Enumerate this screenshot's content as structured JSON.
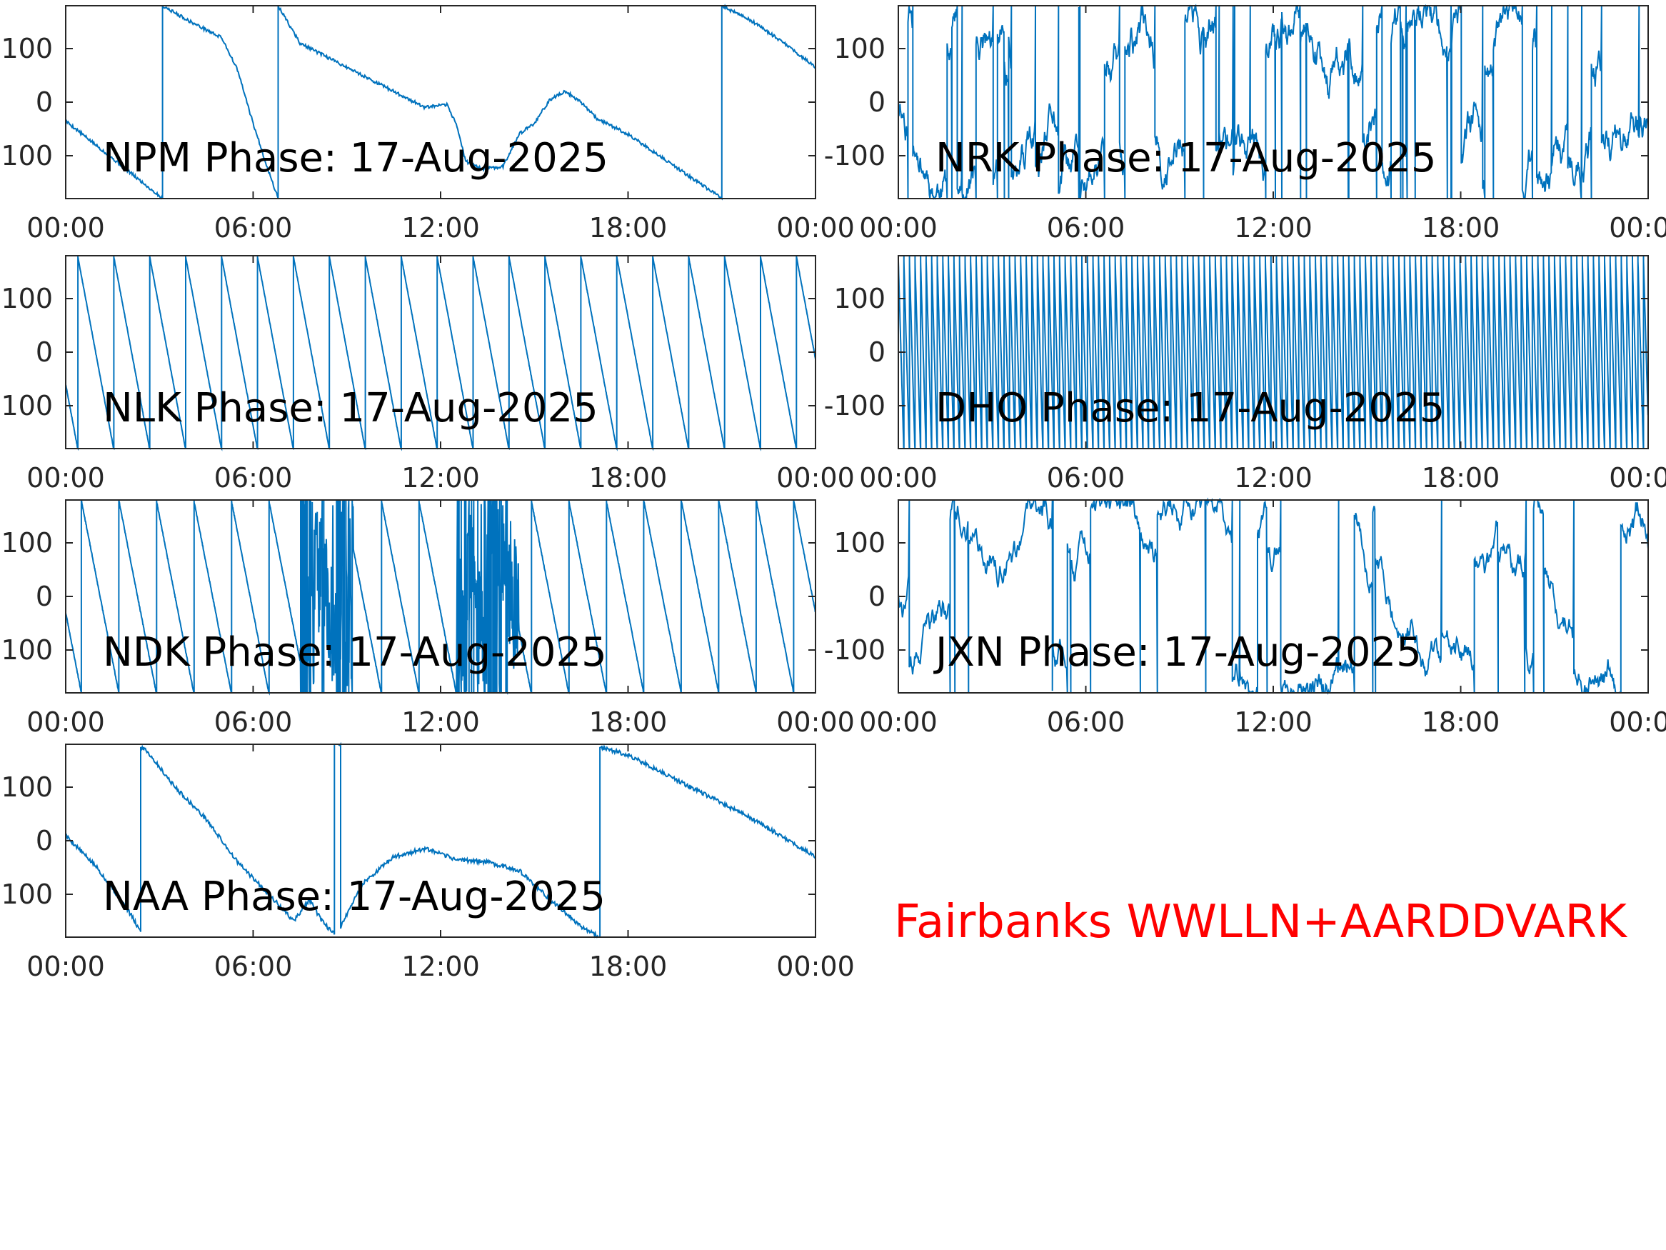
{
  "figure": {
    "footer_label": "Fairbanks WWLLN+AARDDVARK",
    "footer_color": "#ff0000",
    "series_color": "#0072bd",
    "axis_color": "#262626"
  },
  "chart_data": [
    {
      "type": "line",
      "station": "NPM",
      "title": "NPM Phase: 17-Aug-2025",
      "x_unit": "hours",
      "xlim": [
        0,
        24
      ],
      "ylim": [
        -180,
        180
      ],
      "xticks": [
        0,
        6,
        12,
        18,
        24
      ],
      "xtick_labels": [
        "00:00",
        "06:00",
        "12:00",
        "18:00",
        "00:00"
      ],
      "yticks": [
        -100,
        0,
        100
      ],
      "ytick_labels": [
        "-100",
        "0",
        "100"
      ],
      "pattern": "smooth",
      "x": [
        0,
        3.1,
        3.1,
        4.0,
        5.0,
        5.5,
        6.0,
        6.5,
        6.8,
        6.8,
        7.5,
        8.5,
        9.5,
        10.5,
        11.5,
        12.2,
        12.5,
        12.8,
        13.3,
        14.0,
        14.5,
        15.0,
        15.5,
        16.0,
        16.5,
        17.0,
        18.0,
        19.0,
        20.0,
        21.0,
        21.0,
        22.0,
        23.0,
        24.0
      ],
      "y": [
        -35,
        -180,
        180,
        150,
        120,
        60,
        -40,
        -130,
        -180,
        180,
        110,
        80,
        50,
        20,
        -10,
        -5,
        -40,
        -110,
        -125,
        -120,
        -60,
        -40,
        5,
        20,
        0,
        -30,
        -60,
        -100,
        -140,
        -180,
        180,
        150,
        110,
        65
      ],
      "noise": 6
    },
    {
      "type": "line",
      "station": "NRK",
      "title": "NRK Phase: 17-Aug-2025",
      "x_unit": "hours",
      "xlim": [
        0,
        24
      ],
      "ylim": [
        -180,
        180
      ],
      "xticks": [
        0,
        6,
        12,
        18,
        24
      ],
      "xtick_labels": [
        "00:00",
        "06:00",
        "12:00",
        "18:00",
        "00:00"
      ],
      "yticks": [
        -100,
        0,
        100
      ],
      "ytick_labels": [
        "-100",
        "0",
        "100"
      ],
      "pattern": "noisy",
      "samples": 1400,
      "seed": 11,
      "wrap_prob": 0.04,
      "noise": 40
    },
    {
      "type": "line",
      "station": "NLK",
      "title": "NLK Phase: 17-Aug-2025",
      "x_unit": "hours",
      "xlim": [
        0,
        24
      ],
      "ylim": [
        -180,
        180
      ],
      "xticks": [
        0,
        6,
        12,
        18,
        24
      ],
      "xtick_labels": [
        "00:00",
        "06:00",
        "12:00",
        "18:00",
        "00:00"
      ],
      "yticks": [
        -100,
        0,
        100
      ],
      "ytick_labels": [
        "-100",
        "0",
        "100"
      ],
      "pattern": "sawtooth",
      "period_hours": 1.15,
      "start": -60,
      "direction": -1,
      "noise": 2
    },
    {
      "type": "line",
      "station": "DHO",
      "title": "DHO Phase: 17-Aug-2025",
      "x_unit": "hours",
      "xlim": [
        0,
        24
      ],
      "ylim": [
        -180,
        180
      ],
      "xticks": [
        0,
        6,
        12,
        18,
        24
      ],
      "xtick_labels": [
        "00:00",
        "06:00",
        "12:00",
        "18:00",
        "00:00"
      ],
      "yticks": [
        -100,
        0,
        100
      ],
      "ytick_labels": [
        "-100",
        "0",
        "100"
      ],
      "pattern": "sawtooth",
      "period_hours": 0.178,
      "start": 170,
      "direction": -1,
      "noise": 1
    },
    {
      "type": "line",
      "station": "NDK",
      "title": "NDK Phase: 17-Aug-2025",
      "x_unit": "hours",
      "xlim": [
        0,
        24
      ],
      "ylim": [
        -180,
        180
      ],
      "xticks": [
        0,
        6,
        12,
        18,
        24
      ],
      "xtick_labels": [
        "00:00",
        "06:00",
        "12:00",
        "18:00",
        "00:00"
      ],
      "yticks": [
        -100,
        0,
        100
      ],
      "ytick_labels": [
        "-100",
        "0",
        "100"
      ],
      "pattern": "sawtooth",
      "period_hours": 1.2,
      "start": -30,
      "direction": -1,
      "noise": 3,
      "noisy_ranges": [
        [
          7.5,
          9.2
        ],
        [
          12.5,
          14.5
        ]
      ],
      "seed": 23
    },
    {
      "type": "line",
      "station": "JXN",
      "title": "JXN Phase: 17-Aug-2025",
      "x_unit": "hours",
      "xlim": [
        0,
        24
      ],
      "ylim": [
        -180,
        180
      ],
      "xticks": [
        0,
        6,
        12,
        18,
        24
      ],
      "xtick_labels": [
        "00:00",
        "06:00",
        "12:00",
        "18:00",
        "00:00"
      ],
      "yticks": [
        -100,
        0,
        100
      ],
      "ytick_labels": [
        "-100",
        "0",
        "100"
      ],
      "pattern": "noisy",
      "samples": 1100,
      "seed": 37,
      "wrap_prob": 0.035,
      "noise": 35
    },
    {
      "type": "line",
      "station": "NAA",
      "title": "NAA Phase: 17-Aug-2025",
      "x_unit": "hours",
      "xlim": [
        0,
        24
      ],
      "ylim": [
        -180,
        180
      ],
      "xticks": [
        0,
        6,
        12,
        18,
        24
      ],
      "xtick_labels": [
        "00:00",
        "06:00",
        "12:00",
        "18:00",
        "00:00"
      ],
      "yticks": [
        -100,
        0,
        100
      ],
      "ytick_labels": [
        "-100",
        "0",
        "100"
      ],
      "pattern": "smooth",
      "x": [
        0,
        1.0,
        2.0,
        2.4,
        2.4,
        2.5,
        2.5,
        3.5,
        4.5,
        5.5,
        6.5,
        7.3,
        7.8,
        8.2,
        8.6,
        8.6,
        8.8,
        8.8,
        9.5,
        10.5,
        11.5,
        12.5,
        13.5,
        14.5,
        15.5,
        16.5,
        17.1,
        17.1,
        18.0,
        19.0,
        20.0,
        21.0,
        22.0,
        23.0,
        24.0
      ],
      "y": [
        10,
        -50,
        -130,
        -170,
        175,
        170,
        175,
        100,
        40,
        -40,
        -100,
        -150,
        -110,
        -150,
        -175,
        180,
        180,
        -160,
        -80,
        -30,
        -15,
        -35,
        -40,
        -55,
        -110,
        -160,
        -180,
        175,
        160,
        130,
        100,
        70,
        40,
        5,
        -30
      ],
      "noise": 8
    }
  ]
}
